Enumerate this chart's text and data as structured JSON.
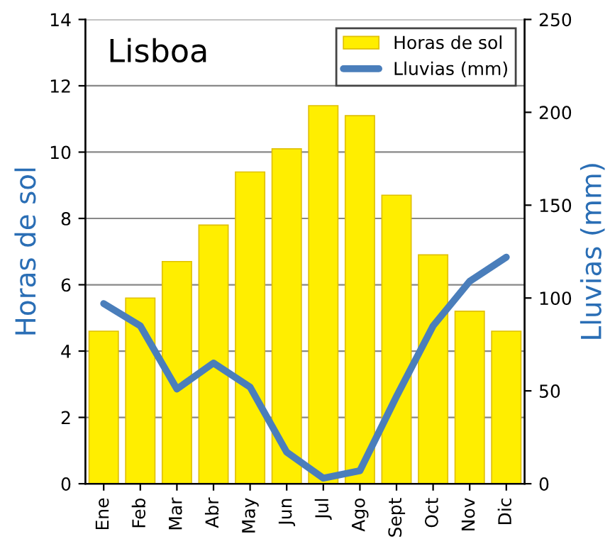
{
  "chart_data": {
    "type": "bar",
    "title": "Lisboa",
    "ylabel": "Horas de sol",
    "y2label": "Lluvias (mm)",
    "categories": [
      "Ene",
      "Feb",
      "Mar",
      "Abr",
      "May",
      "Jun",
      "Jul",
      "Ago",
      "Sept",
      "Oct",
      "Nov",
      "Dic"
    ],
    "series": [
      {
        "name": "Horas de sol",
        "color": "#ffee00",
        "values": [
          4.6,
          5.6,
          6.7,
          7.8,
          9.4,
          10.1,
          11.4,
          11.1,
          8.7,
          6.9,
          5.2,
          4.6
        ]
      },
      {
        "name": "Lluvias (mm)",
        "type": "line",
        "axis": "y2",
        "color": "#4a7ebb",
        "values": [
          97,
          85,
          51,
          65,
          52,
          17,
          3,
          7,
          47,
          85,
          109,
          122
        ]
      }
    ],
    "ylim": [
      0,
      14
    ],
    "yticks": [
      0,
      2,
      4,
      6,
      8,
      10,
      12,
      14
    ],
    "y2lim": [
      0,
      250
    ],
    "y2ticks": [
      0,
      50,
      100,
      150,
      200,
      250
    ],
    "grid": "y",
    "legend": "top right",
    "marker": "none",
    "line_style": "solid"
  }
}
